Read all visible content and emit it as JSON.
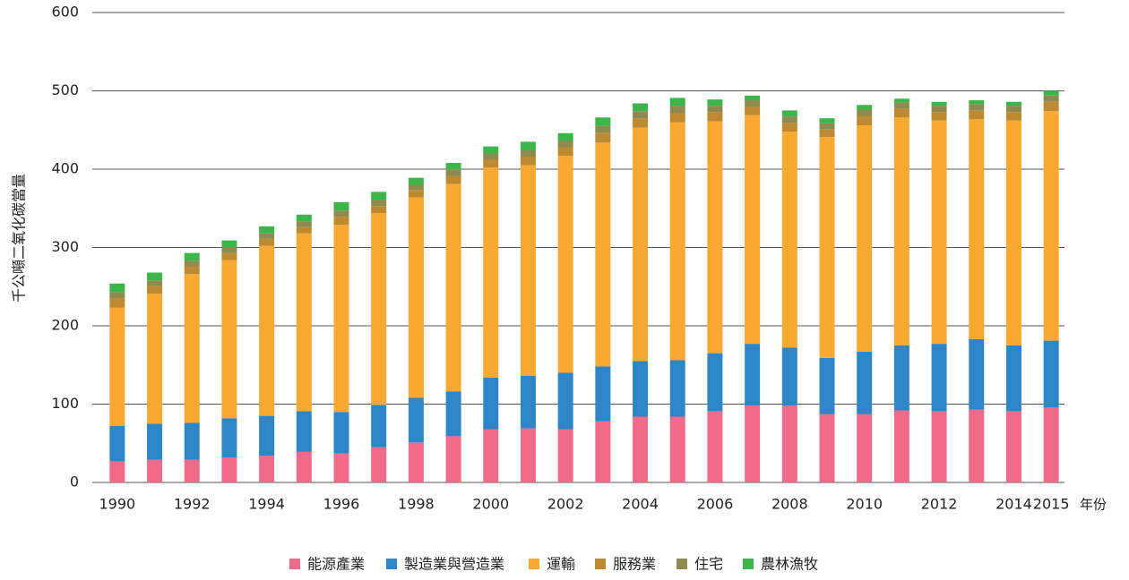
{
  "chart_data": {
    "type": "stacked_bar",
    "y_label": "千公噸二氧化碳當量",
    "x_label": "年份",
    "categories": [
      "1990",
      null,
      "1992",
      null,
      "1994",
      null,
      "1996",
      null,
      "1998",
      null,
      "2000",
      null,
      "2002",
      null,
      "2004",
      null,
      "2006",
      null,
      "2008",
      null,
      "2010",
      null,
      "2012",
      null,
      "2014",
      "2015"
    ],
    "series": [
      {
        "name": "能源產業",
        "color": "#f06a8a",
        "values": [
          27,
          29,
          29,
          32,
          34,
          39,
          37,
          45,
          51,
          59,
          68,
          69,
          68,
          78,
          84,
          84,
          91,
          98,
          98,
          87,
          87,
          92,
          91,
          93,
          91,
          96
        ]
      },
      {
        "name": "製造業與營造業",
        "color": "#2e86c8",
        "values": [
          45,
          46,
          47,
          50,
          51,
          52,
          53,
          54,
          57,
          57,
          66,
          67,
          72,
          70,
          71,
          72,
          74,
          79,
          74,
          72,
          80,
          83,
          86,
          90,
          84,
          85
        ]
      },
      {
        "name": "運輸",
        "color": "#f9a831",
        "values": [
          151,
          166,
          190,
          202,
          217,
          227,
          239,
          245,
          256,
          265,
          268,
          269,
          277,
          286,
          298,
          304,
          296,
          292,
          276,
          282,
          289,
          291,
          285,
          281,
          287,
          293
        ]
      },
      {
        "name": "服務業",
        "color": "#bd8a32",
        "values": [
          12,
          10,
          10,
          9,
          9,
          8,
          10,
          9,
          9,
          10,
          10,
          11,
          11,
          12,
          12,
          12,
          12,
          11,
          11,
          10,
          12,
          11,
          11,
          11,
          11,
          12
        ]
      },
      {
        "name": "住宅",
        "color": "#8f8a4f",
        "values": [
          8,
          7,
          7,
          7,
          7,
          7,
          8,
          8,
          7,
          8,
          8,
          8,
          8,
          9,
          9,
          9,
          8,
          8,
          8,
          8,
          8,
          8,
          8,
          8,
          8,
          8
        ]
      },
      {
        "name": "農林漁牧",
        "color": "#3cb54a",
        "values": [
          11,
          10,
          10,
          9,
          9,
          9,
          11,
          10,
          9,
          9,
          9,
          11,
          10,
          11,
          10,
          10,
          8,
          6,
          8,
          6,
          6,
          5,
          5,
          5,
          5,
          6
        ]
      }
    ],
    "ylim": [
      0,
      600
    ],
    "yticks": [
      0,
      100,
      200,
      300,
      400,
      500,
      600
    ],
    "grid": true
  }
}
